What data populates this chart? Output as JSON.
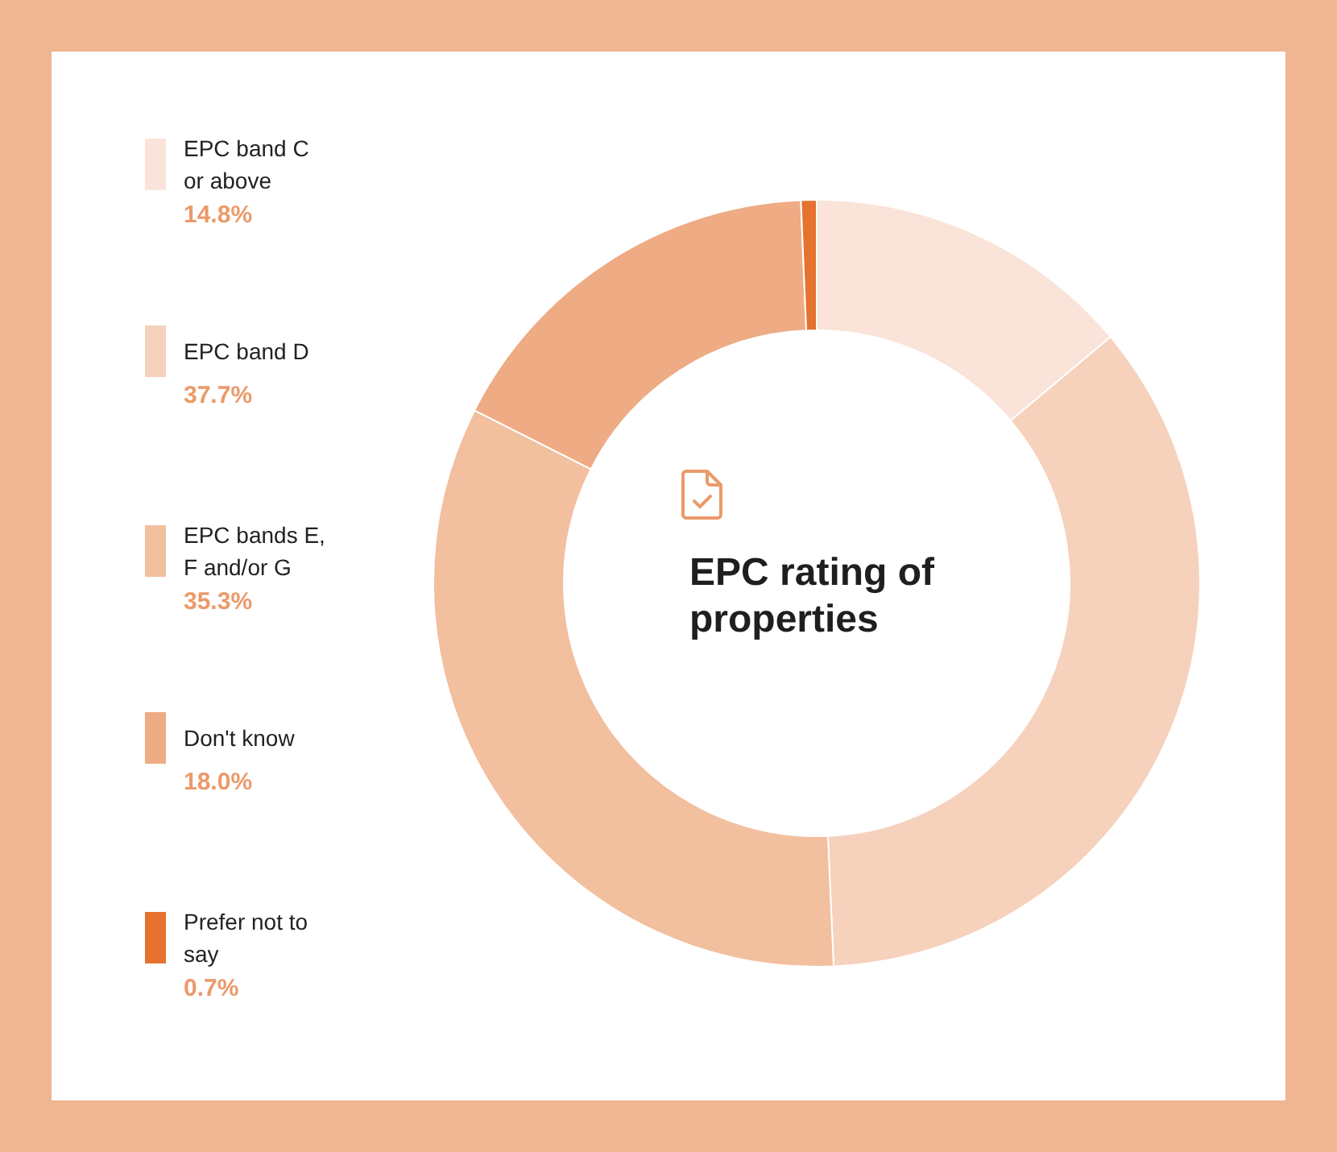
{
  "chart_data": {
    "type": "donut",
    "title": "EPC rating of properties",
    "categories": [
      "EPC band C or above",
      "EPC band D",
      "EPC bands E, F and/or G",
      "Don't know",
      "Prefer not to say"
    ],
    "values": [
      14.8,
      37.7,
      35.3,
      18.0,
      0.7
    ],
    "value_labels": [
      "14.8%",
      "37.7%",
      "35.3%",
      "18.0%",
      "0.7%"
    ],
    "colors": [
      "#fae3d8",
      "#f6d1bc",
      "#f2bf9f",
      "#eeab84",
      "#e5722f"
    ],
    "legend": "left"
  }
}
